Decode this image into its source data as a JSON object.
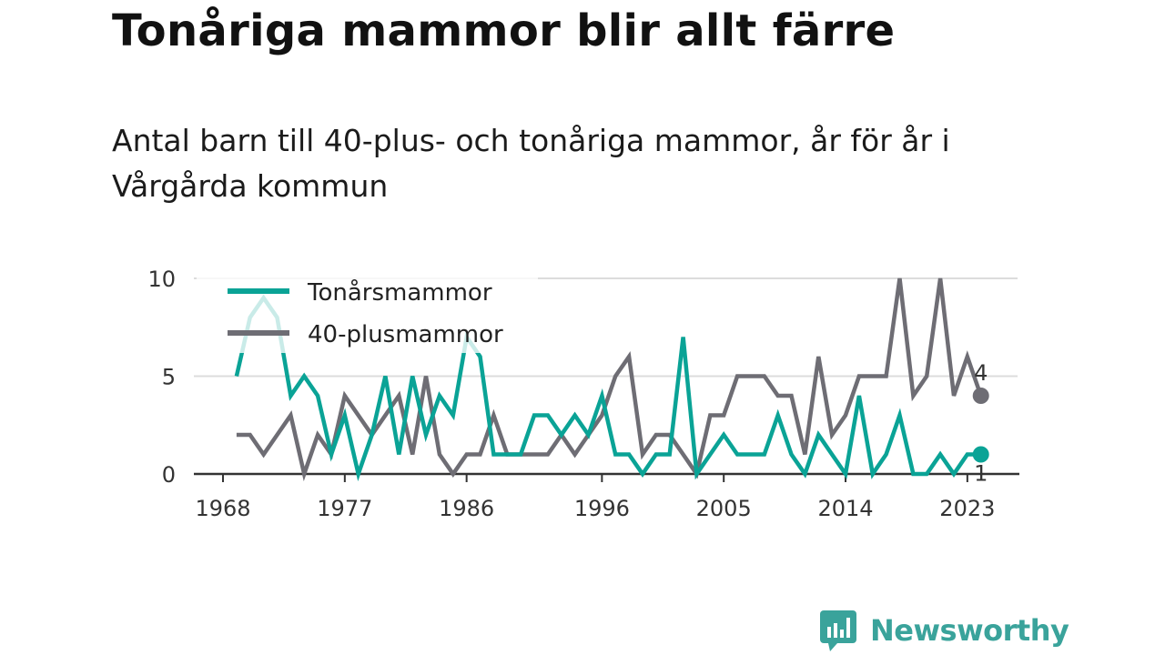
{
  "title": "Tonåriga mammor blir allt färre",
  "subtitle": "Antal barn till 40-plus- och tonåriga mammor, år för år i Vårgårda kommun",
  "brand": {
    "name": "Newsworthy",
    "icon": "newsworthy-logo-icon"
  },
  "colors": {
    "teen": "#0aa396",
    "forty": "#6e6d74",
    "grid": "#dcdcdc",
    "axis": "#333333"
  },
  "chart_data": {
    "type": "line",
    "x_ticks": [
      "1968",
      "1977",
      "1986",
      "1996",
      "2005",
      "2014",
      "2023"
    ],
    "y_ticks": [
      "0",
      "5",
      "10"
    ],
    "ylim": [
      0,
      10
    ],
    "grid": true,
    "legend_position": "top-left",
    "x": [
      1969,
      1970,
      1971,
      1972,
      1973,
      1974,
      1975,
      1976,
      1977,
      1978,
      1979,
      1980,
      1981,
      1982,
      1983,
      1984,
      1985,
      1986,
      1987,
      1988,
      1989,
      1990,
      1991,
      1992,
      1993,
      1994,
      1995,
      1996,
      1997,
      1998,
      1999,
      2000,
      2001,
      2002,
      2003,
      2004,
      2005,
      2006,
      2007,
      2008,
      2009,
      2010,
      2011,
      2012,
      2013,
      2014,
      2015,
      2016,
      2017,
      2018,
      2019,
      2020,
      2021,
      2022,
      2023,
      2024
    ],
    "series": [
      {
        "name": "Tonårsmammor",
        "color": "#0aa396",
        "values": [
          5,
          8,
          9,
          8,
          4,
          5,
          4,
          1,
          3,
          0,
          2,
          5,
          1,
          5,
          2,
          4,
          3,
          7,
          6,
          1,
          1,
          1,
          3,
          3,
          2,
          3,
          2,
          4,
          1,
          1,
          0,
          1,
          1,
          7,
          0,
          1,
          2,
          1,
          1,
          1,
          3,
          1,
          0,
          2,
          1,
          0,
          4,
          0,
          1,
          3,
          0,
          0,
          1,
          0,
          1,
          1
        ],
        "end_label": "1"
      },
      {
        "name": "40-plusmammor",
        "color": "#6e6d74",
        "values": [
          2,
          2,
          1,
          2,
          3,
          0,
          2,
          1,
          4,
          3,
          2,
          3,
          4,
          1,
          5,
          1,
          0,
          1,
          1,
          3,
          1,
          1,
          1,
          1,
          2,
          1,
          2,
          3,
          5,
          6,
          1,
          2,
          2,
          1,
          0,
          3,
          3,
          5,
          5,
          5,
          4,
          4,
          1,
          6,
          2,
          3,
          5,
          5,
          5,
          10,
          4,
          5,
          10,
          4,
          6,
          4
        ],
        "end_label": "4"
      }
    ]
  }
}
